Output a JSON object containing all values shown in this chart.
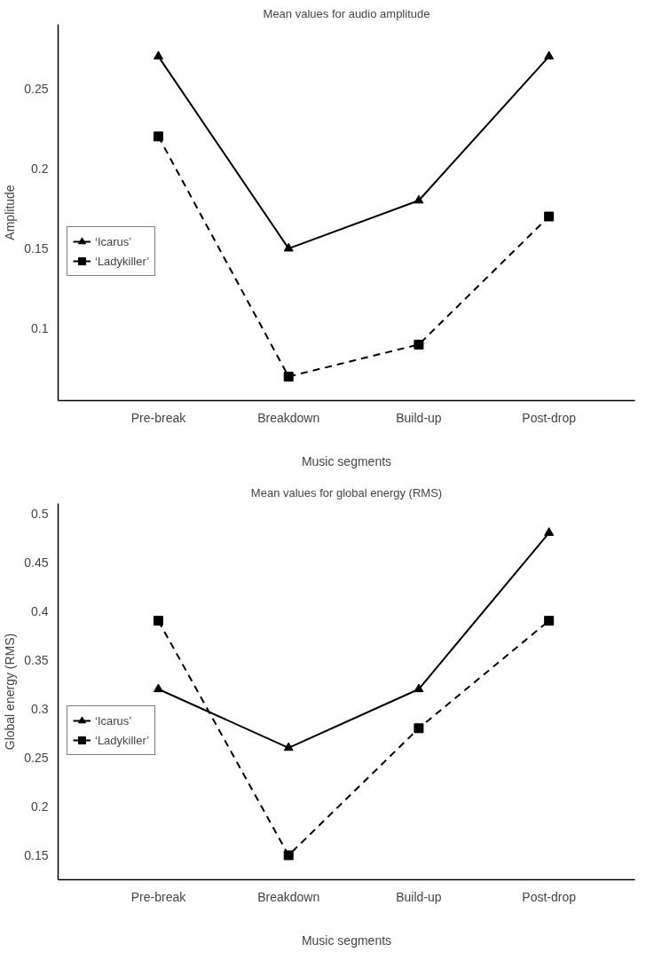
{
  "chart_data": [
    {
      "type": "line",
      "title": "Mean values for audio amplitude",
      "xlabel": "Music segments",
      "ylabel": "Amplitude",
      "categories": [
        "Pre-break",
        "Breakdown",
        "Build-up",
        "Post-drop"
      ],
      "ylim": [
        0.055,
        0.29
      ],
      "yticks": [
        0.1,
        0.15,
        0.2,
        0.25
      ],
      "grid": false,
      "legend": "left",
      "series": [
        {
          "name": "‘Icarus’",
          "color": "#000000",
          "marker": "triangle",
          "line_style": "solid",
          "values": [
            0.27,
            0.15,
            0.18,
            0.27
          ]
        },
        {
          "name": "‘Ladykiller’",
          "color": "#000000",
          "marker": "square",
          "line_style": "dashed",
          "values": [
            0.22,
            0.07,
            0.09,
            0.17
          ]
        }
      ]
    },
    {
      "type": "line",
      "title": "Mean values for global energy (RMS)",
      "xlabel": "Music segments",
      "ylabel": "Global energy (RMS)",
      "categories": [
        "Pre-break",
        "Breakdown",
        "Build-up",
        "Post-drop"
      ],
      "ylim": [
        0.125,
        0.51
      ],
      "yticks": [
        0.15,
        0.2,
        0.25,
        0.3,
        0.35,
        0.4,
        0.45,
        0.5
      ],
      "grid": false,
      "legend": "left",
      "series": [
        {
          "name": "‘Icarus’",
          "color": "#000000",
          "marker": "triangle",
          "line_style": "solid",
          "values": [
            0.32,
            0.26,
            0.32,
            0.48
          ]
        },
        {
          "name": "‘Ladykiller’",
          "color": "#000000",
          "marker": "square",
          "line_style": "dashed",
          "values": [
            0.39,
            0.15,
            0.28,
            0.39
          ]
        }
      ]
    }
  ]
}
